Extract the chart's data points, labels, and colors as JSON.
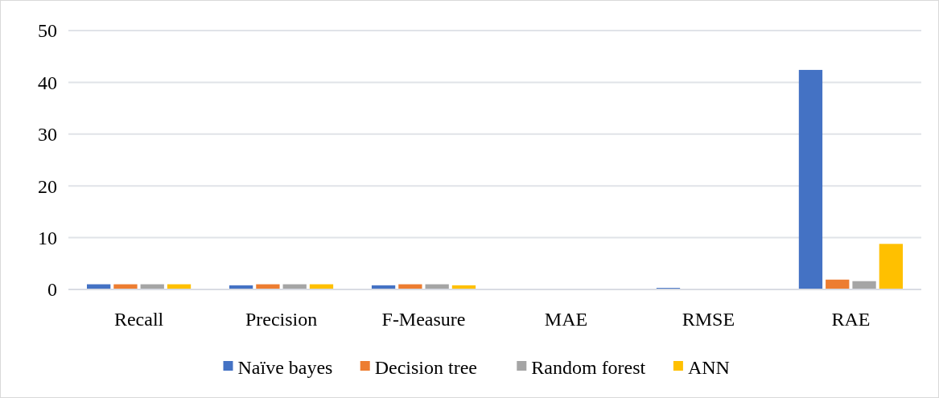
{
  "chart_data": {
    "type": "bar",
    "categories": [
      "Recall",
      "Precision",
      "F-Measure",
      "MAE",
      "RMSE",
      "RAE"
    ],
    "series": [
      {
        "name": "Naïve bayes",
        "color": "#4472c4",
        "values": [
          1,
          0.8,
          0.8,
          null,
          0.3,
          42.4
        ]
      },
      {
        "name": "Decision tree",
        "color": "#ed7d31",
        "values": [
          1,
          1,
          1,
          null,
          null,
          1.9
        ]
      },
      {
        "name": "Random forest",
        "color": "#a5a5a5",
        "values": [
          1,
          1,
          1,
          null,
          null,
          1.6
        ]
      },
      {
        "name": "ANN",
        "color": "#ffc000",
        "values": [
          1,
          1,
          0.8,
          null,
          null,
          8.8
        ]
      }
    ],
    "ylim": [
      0,
      50
    ],
    "yticks": [
      0,
      10,
      20,
      30,
      40,
      50
    ],
    "grid": "y",
    "legend": "bottom"
  }
}
